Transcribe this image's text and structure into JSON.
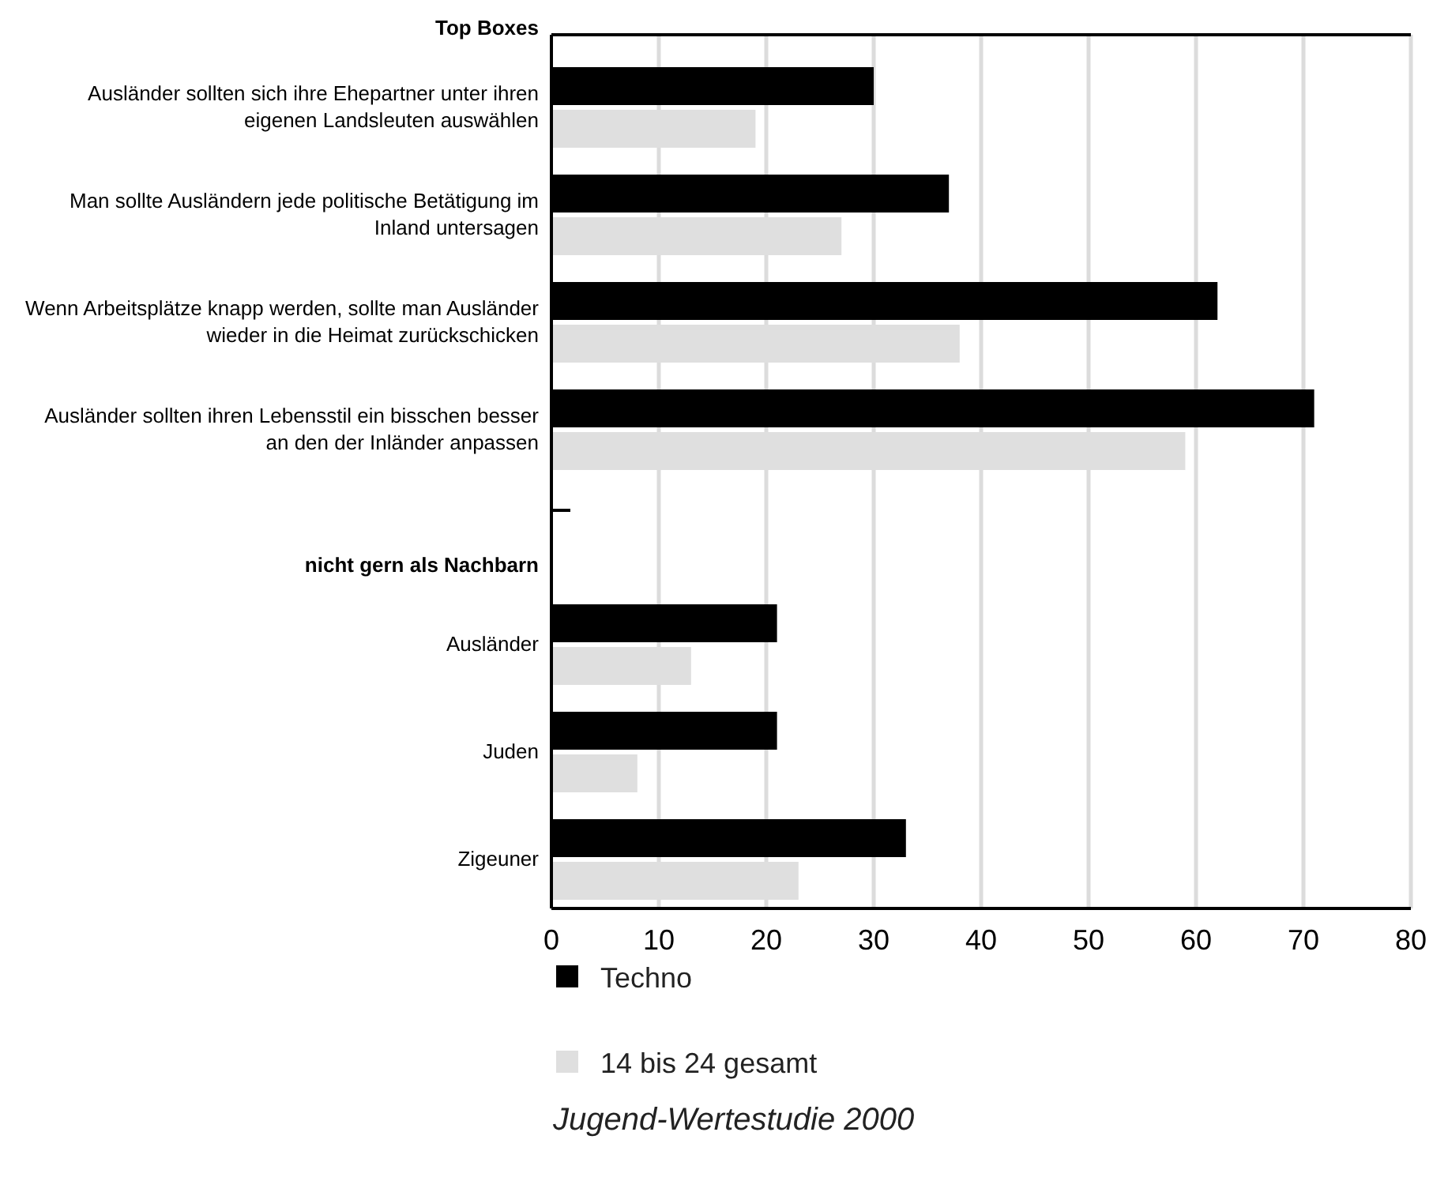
{
  "chart_data": {
    "type": "bar",
    "orientation": "horizontal",
    "categories": [
      "Top Boxes",
      "Ausländer sollten sich ihre Ehepartner unter ihren eigenen Landsleuten auswählen",
      "Man sollte Ausländern jede politische Betätigung im Inland untersagen",
      "Wenn Arbeitsplätze knapp werden, sollte man Ausländer wieder in die Heimat zurückschicken",
      "Ausländer sollten ihren Lebensstil ein bisschen besser an den der Inländer anpassen",
      null,
      "nicht gern als Nachbarn",
      "Ausländer",
      "Juden",
      "Zigeuner"
    ],
    "series": [
      {
        "name": "Techno",
        "color": "#000000",
        "values": [
          null,
          30,
          37,
          62,
          71,
          null,
          null,
          21,
          21,
          33
        ]
      },
      {
        "name": "14 bis 24 gesamt",
        "color": "#dfdfdf",
        "values": [
          null,
          19,
          27,
          38,
          59,
          null,
          null,
          13,
          8,
          23
        ]
      }
    ],
    "xlim": [
      0,
      80
    ],
    "xticks": [
      0,
      10,
      20,
      30,
      40,
      50,
      60,
      70,
      80
    ],
    "grid": "x",
    "legend": "bottom",
    "annotations": [
      "Jugend-Wertestudie 2000"
    ]
  }
}
